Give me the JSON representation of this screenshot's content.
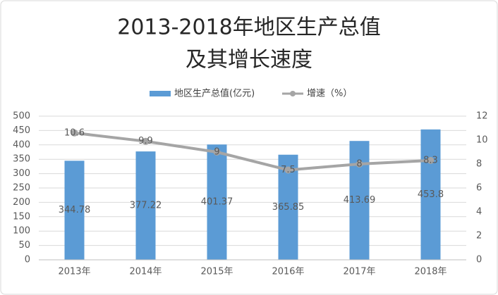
{
  "chart_data": {
    "type": "bar-line",
    "title": [
      "2013-2018年地区生产总值",
      "及其增长速度"
    ],
    "categories": [
      "2013年",
      "2014年",
      "2015年",
      "2016年",
      "2017年",
      "2018年"
    ],
    "series": [
      {
        "name": "地区生产总值(亿元)",
        "type": "bar",
        "color": "#5b9bd5",
        "values": [
          344.78,
          377.22,
          401.37,
          365.85,
          413.69,
          453.8
        ]
      },
      {
        "name": "增速（%）",
        "type": "line",
        "axis": "y2",
        "color": "#a5a5a5",
        "values": [
          10.6,
          9.9,
          9,
          7.5,
          8,
          8.3
        ]
      }
    ],
    "ylim": [
      0,
      500
    ],
    "yticks": [
      0,
      50,
      100,
      150,
      200,
      250,
      300,
      350,
      400,
      450,
      500
    ],
    "y2lim": [
      0,
      12
    ],
    "y2ticks": [
      0,
      2,
      4,
      6,
      8,
      10,
      12
    ],
    "grid": true,
    "legend": "top"
  }
}
